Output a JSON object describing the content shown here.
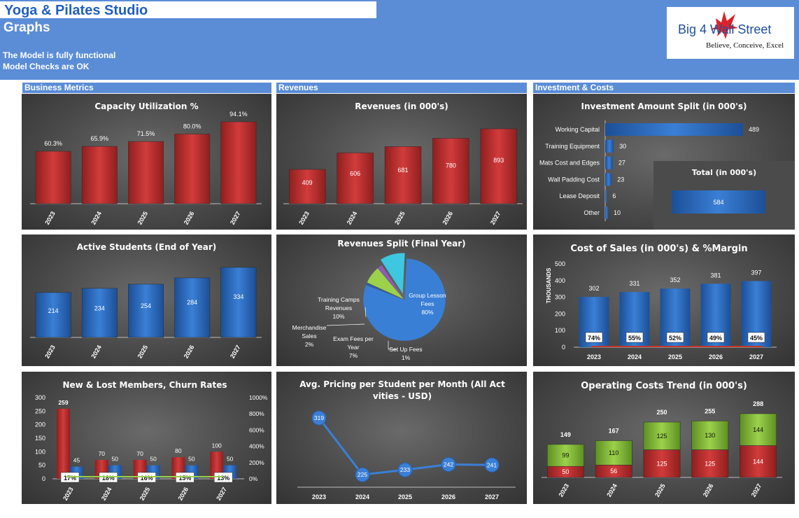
{
  "header": {
    "app_title": "Yoga & Pilates Studio",
    "page_title": "Graphs",
    "status_line_1": "The Model is fully functional",
    "status_line_2": "Model Checks are OK"
  },
  "logo": {
    "name": "Big 4 Wall Street",
    "tagline": "Believe, Conceive, Excel",
    "icon": "eagle-icon"
  },
  "sections": {
    "business_metrics": "Business Metrics",
    "revenues": "Revenues",
    "investment_costs": "Investment & Costs"
  },
  "colors": {
    "banner": "#5b8dd7",
    "red_bar": "#d23b3b",
    "blue_bar": "#3a7fd6",
    "green_bar": "#9bd14b",
    "panel_bg": "#4a4a4a"
  },
  "chart_data": [
    {
      "id": "capacity",
      "type": "bar",
      "title": "Capacity Utilization %",
      "categories": [
        "2023",
        "2024",
        "2025",
        "2026",
        "2027"
      ],
      "values": [
        60.3,
        65.9,
        71.5,
        80.0,
        94.1
      ],
      "labels": [
        "60.3%",
        "65.9%",
        "71.5%",
        "80.0%",
        "94.1%"
      ],
      "color": "#d23b3b"
    },
    {
      "id": "revenues",
      "type": "bar",
      "title": "Revenues (in 000's)",
      "categories": [
        "2023",
        "2024",
        "2025",
        "2026",
        "2027"
      ],
      "values": [
        409,
        606,
        681,
        780,
        893
      ],
      "color": "#d23b3b"
    },
    {
      "id": "investment",
      "type": "bar",
      "orientation": "horizontal",
      "title": "Investment Amount Split (in 000's)",
      "categories": [
        "Working Capital",
        "Training Equipment",
        "Mats Cost and Edges",
        "Wall Padding Cost",
        "Lease Deposit",
        "Other"
      ],
      "values": [
        489,
        30,
        27,
        23,
        6,
        10
      ],
      "color": "#3a7fd6",
      "total": {
        "title": "Total (in 000's)",
        "value": 584
      }
    },
    {
      "id": "students",
      "type": "bar",
      "title": "Active Students (End of Year)",
      "categories": [
        "2023",
        "2024",
        "2025",
        "2026",
        "2027"
      ],
      "values": [
        214,
        234,
        254,
        284,
        334
      ],
      "color": "#3a7fd6"
    },
    {
      "id": "revsplit",
      "type": "pie",
      "title": "Revenues Split (Final Year)",
      "slices": [
        {
          "name": "Group Lesson Fees",
          "value": 80,
          "label": "80%",
          "color": "#3a7fd6"
        },
        {
          "name": "Set Up Fees",
          "value": 1,
          "label": "1%",
          "color": "#2c5ea8"
        },
        {
          "name": "Exam Fees per Year",
          "value": 7,
          "label": "7%",
          "color": "#9bd14b"
        },
        {
          "name": "Merchandise Sales",
          "value": 2,
          "label": "2%",
          "color": "#8e5bb5"
        },
        {
          "name": "Training Camps Revenues",
          "value": 10,
          "label": "10%",
          "color": "#3ec7e0"
        }
      ]
    },
    {
      "id": "costsales",
      "type": "bar",
      "title": "Cost of Sales (in 000's) & %Margin",
      "categories": [
        "2023",
        "2024",
        "2025",
        "2026",
        "2027"
      ],
      "values": [
        302,
        331,
        352,
        381,
        397
      ],
      "margin_labels": [
        "74%",
        "55%",
        "52%",
        "49%",
        "45%"
      ],
      "ylabel": "THOUSANDS",
      "yticks": [
        0,
        100,
        200,
        300,
        400,
        500
      ],
      "ylim": [
        0,
        500
      ],
      "color": "#3a7fd6"
    },
    {
      "id": "members",
      "type": "bar",
      "title": "New & Lost Members, Churn Rates",
      "categories": [
        "2023",
        "2024",
        "2025",
        "2026",
        "2027"
      ],
      "series": [
        {
          "values": [
            259,
            70,
            70,
            80,
            100
          ],
          "color": "#d23b3b"
        },
        {
          "values": [
            45,
            50,
            50,
            50,
            50
          ],
          "color": "#3a7fd6"
        }
      ],
      "churn_labels": [
        "17%",
        "18%",
        "16%",
        "15%",
        "13%"
      ],
      "yticks": [
        0,
        50,
        100,
        150,
        200,
        250,
        300
      ],
      "y2ticks": [
        "0%",
        "200%",
        "400%",
        "600%",
        "800%",
        "1000%"
      ],
      "ylim": [
        0,
        300
      ]
    },
    {
      "id": "pricing",
      "type": "line",
      "title": "Avg. Pricing per Student per Month (All Activities - USD)",
      "categories": [
        "2023",
        "2024",
        "2025",
        "2026",
        "2027"
      ],
      "values": [
        319,
        225,
        233,
        242,
        241
      ],
      "ylim": [
        100,
        360
      ],
      "color": "#3a7fd6"
    },
    {
      "id": "opcosts",
      "type": "bar",
      "stacked": true,
      "title": "Operating Costs Trend (in 000's)",
      "categories": [
        "2023",
        "2024",
        "2025",
        "2026",
        "2027"
      ],
      "series": [
        {
          "values": [
            50,
            56,
            125,
            125,
            144
          ],
          "color": "#d23b3b"
        },
        {
          "values": [
            99,
            110,
            125,
            130,
            144
          ],
          "color": "#9bd14b"
        }
      ],
      "totals": [
        149,
        167,
        250,
        255,
        288
      ],
      "ylim": [
        0,
        300
      ]
    }
  ]
}
